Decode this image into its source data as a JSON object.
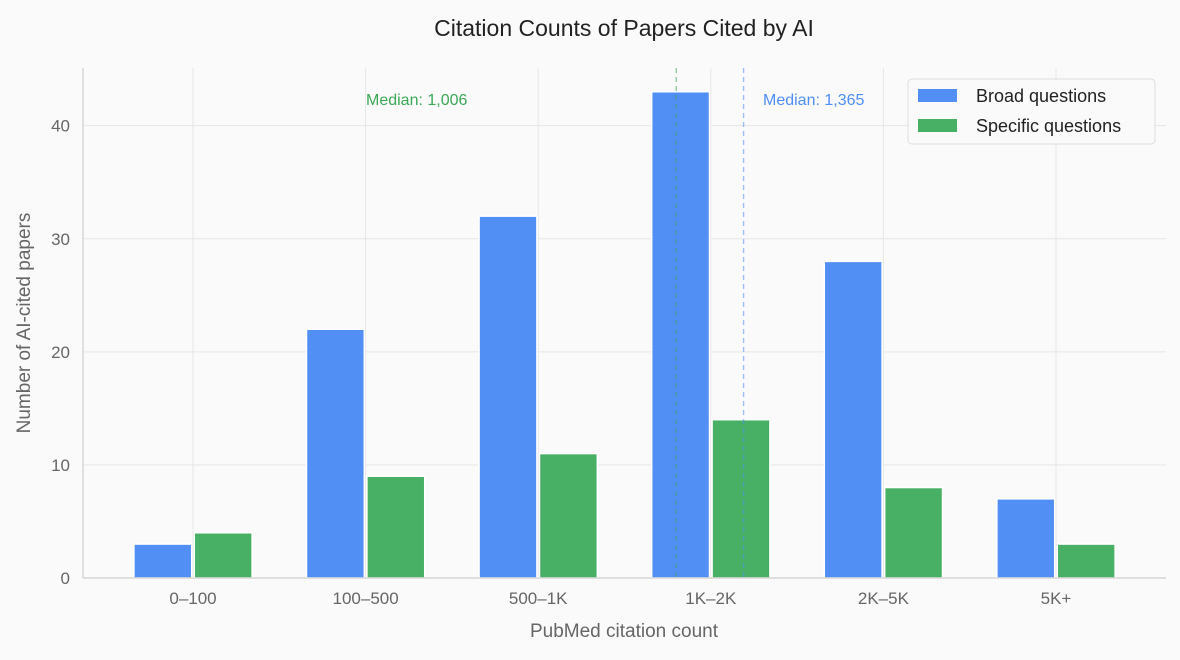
{
  "chart_data": {
    "type": "bar",
    "title": "Citation Counts of Papers Cited by AI",
    "xlabel": "PubMed citation count",
    "ylabel": "Number of AI-cited papers",
    "categories": [
      "0–100",
      "100–500",
      "500–1K",
      "1K–2K",
      "2K–5K",
      "5K+"
    ],
    "series": [
      {
        "name": "Broad questions",
        "color": "#528ff5",
        "values": [
          3,
          22,
          32,
          43,
          28,
          7
        ]
      },
      {
        "name": "Specific questions",
        "color": "#47b064",
        "values": [
          4,
          9,
          11,
          14,
          8,
          3
        ]
      }
    ],
    "yticks": [
      0,
      10,
      20,
      30,
      40
    ],
    "ylim": [
      0,
      45
    ],
    "grid": true,
    "legend": "top-right",
    "annotations": [
      {
        "series": "Specific questions",
        "text": "Median: 1,006",
        "value": 1006,
        "color": "#3aa857"
      },
      {
        "series": "Broad questions",
        "text": "Median: 1,365",
        "value": 1365,
        "color": "#4f8ef5"
      }
    ]
  }
}
